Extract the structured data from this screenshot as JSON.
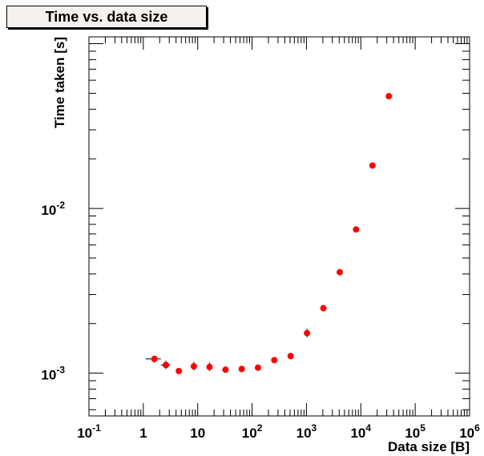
{
  "chart_data": {
    "type": "scatter",
    "title": "Time vs. data size",
    "xlabel": "Data size [B]",
    "ylabel": "Time taken [s]",
    "xscale": "log",
    "yscale": "log",
    "xlim": [
      0.1,
      1000000
    ],
    "ylim": [
      0.00055,
      0.11
    ],
    "grid": false,
    "marker_color": "#ff0000",
    "x_ticks": [
      {
        "value": 0.1,
        "base": "10",
        "exp": "-1"
      },
      {
        "value": 1,
        "base": "1",
        "exp": ""
      },
      {
        "value": 10,
        "base": "10",
        "exp": ""
      },
      {
        "value": 100,
        "base": "10",
        "exp": "2"
      },
      {
        "value": 1000,
        "base": "10",
        "exp": "3"
      },
      {
        "value": 10000,
        "base": "10",
        "exp": "4"
      },
      {
        "value": 100000,
        "base": "10",
        "exp": "5"
      },
      {
        "value": 1000000,
        "base": "10",
        "exp": "6"
      }
    ],
    "y_ticks": [
      {
        "value": 0.001,
        "base": "10",
        "exp": "-3"
      },
      {
        "value": 0.01,
        "base": "10",
        "exp": "-2"
      }
    ],
    "points": [
      {
        "x": 1.6,
        "y": 0.00122,
        "xerr": [
          1.1,
          2.1
        ],
        "yerr": [
          0.00116,
          0.00128
        ]
      },
      {
        "x": 2.6,
        "y": 0.00112,
        "xerr": [
          2.1,
          3.1
        ],
        "yerr": [
          0.00106,
          0.00119
        ]
      },
      {
        "x": 4.5,
        "y": 0.00103,
        "xerr": [
          4.0,
          5.0
        ],
        "yerr": [
          0.001,
          0.00106
        ]
      },
      {
        "x": 8.5,
        "y": 0.0011,
        "xerr": [
          8.0,
          9.0
        ],
        "yerr": [
          0.00104,
          0.00117
        ]
      },
      {
        "x": 16.5,
        "y": 0.00109,
        "xerr": [
          16.0,
          17.0
        ],
        "yerr": [
          0.00103,
          0.00116
        ]
      },
      {
        "x": 32.5,
        "y": 0.00105,
        "xerr": [
          32.0,
          33.0
        ],
        "yerr": [
          0.00102,
          0.00108
        ]
      },
      {
        "x": 64.5,
        "y": 0.00106,
        "xerr": [
          64.0,
          65.0
        ],
        "yerr": [
          0.00103,
          0.00109
        ]
      },
      {
        "x": 128.5,
        "y": 0.00108,
        "xerr": [
          128.0,
          129.0
        ],
        "yerr": [
          0.00105,
          0.00111
        ]
      },
      {
        "x": 256.5,
        "y": 0.0012,
        "xerr": [
          256.0,
          257.0
        ],
        "yerr": [
          0.00117,
          0.00123
        ]
      },
      {
        "x": 512.5,
        "y": 0.00127,
        "xerr": [
          512.0,
          513.0
        ],
        "yerr": [
          0.00124,
          0.0013
        ]
      },
      {
        "x": 1024.5,
        "y": 0.00175,
        "xerr": [
          1024.0,
          1025.0
        ],
        "yerr": [
          0.00165,
          0.00186
        ]
      },
      {
        "x": 2048.5,
        "y": 0.00248,
        "xerr": [
          2048.0,
          2049.0
        ],
        "yerr": [
          0.00242,
          0.00254
        ]
      },
      {
        "x": 4096.5,
        "y": 0.0041,
        "xerr": [
          4096.0,
          4097.0
        ],
        "yerr": [
          0.00402,
          0.00418
        ]
      },
      {
        "x": 8192.5,
        "y": 0.00745,
        "xerr": [
          8192.0,
          8193.0
        ],
        "yerr": [
          0.00735,
          0.00755
        ]
      },
      {
        "x": 16384.5,
        "y": 0.0182,
        "xerr": [
          16384.0,
          16385.0
        ],
        "yerr": [
          0.018,
          0.0184
        ]
      },
      {
        "x": 32768.5,
        "y": 0.048,
        "xerr": [
          32768.0,
          32769.0
        ],
        "yerr": [
          0.0476,
          0.0484
        ]
      }
    ]
  }
}
